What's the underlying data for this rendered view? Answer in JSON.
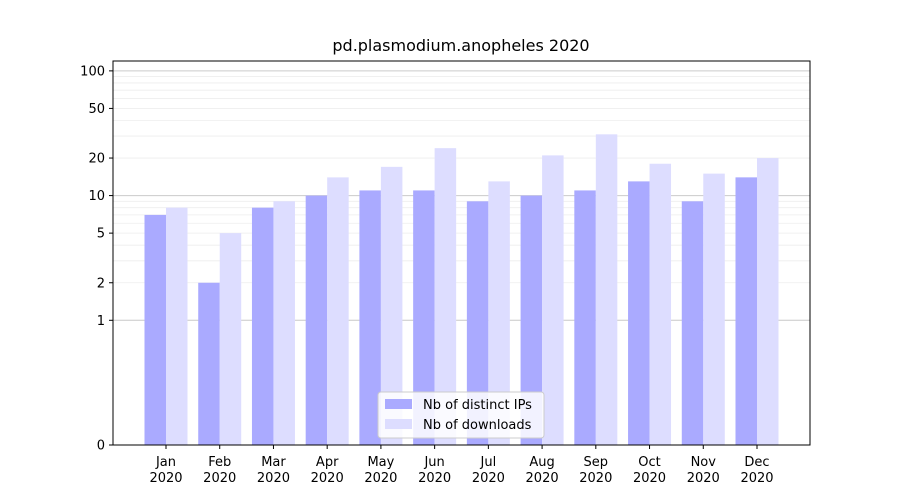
{
  "chart_data": {
    "type": "bar",
    "title": "pd.plasmodium.anopheles 2020",
    "xlabel": "",
    "ylabel": "",
    "yscale": "symlog",
    "ylim": [
      0,
      120
    ],
    "categories": [
      [
        "Jan",
        "2020"
      ],
      [
        "Feb",
        "2020"
      ],
      [
        "Mar",
        "2020"
      ],
      [
        "Apr",
        "2020"
      ],
      [
        "May",
        "2020"
      ],
      [
        "Jun",
        "2020"
      ],
      [
        "Jul",
        "2020"
      ],
      [
        "Aug",
        "2020"
      ],
      [
        "Sep",
        "2020"
      ],
      [
        "Oct",
        "2020"
      ],
      [
        "Nov",
        "2020"
      ],
      [
        "Dec",
        "2020"
      ]
    ],
    "yticks": [
      {
        "value": 0,
        "label": "0"
      },
      {
        "value": 1,
        "label": "1"
      },
      {
        "value": 2,
        "label": "2"
      },
      {
        "value": 5,
        "label": "5"
      },
      {
        "value": 10,
        "label": "10"
      },
      {
        "value": 20,
        "label": "20"
      },
      {
        "value": 50,
        "label": "50"
      },
      {
        "value": 100,
        "label": "100"
      }
    ],
    "series": [
      {
        "name": "Nb of distinct IPs",
        "color": "#aaaaff",
        "values": [
          7,
          2,
          8,
          10,
          11,
          11,
          9,
          10,
          11,
          13,
          9,
          14
        ]
      },
      {
        "name": "Nb of downloads",
        "color": "#ddddff",
        "values": [
          8,
          5,
          9,
          14,
          17,
          24,
          13,
          21,
          31,
          18,
          15,
          20
        ]
      }
    ],
    "grid": true,
    "legend_position": "bottom-center"
  }
}
